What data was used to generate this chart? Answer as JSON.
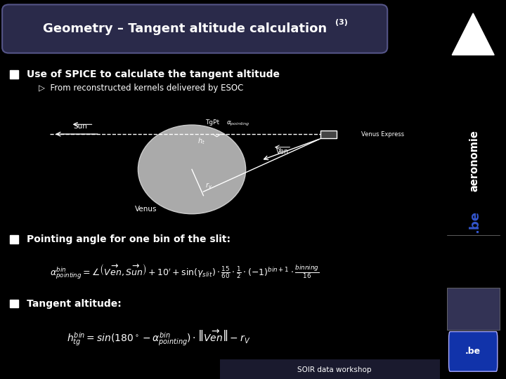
{
  "background_color": "#000000",
  "title_text": "Geometry – Tangent altitude calculation",
  "title_superscript": "(3)",
  "title_bg_color": "#2a2a4a",
  "title_edge_color": "#555588",
  "title_text_color": "#ffffff",
  "bullet1_text": "Use of SPICE to calculate the tangent altitude",
  "bullet1_sub": "▷  From reconstructed kernels delivered by ESOC",
  "bullet2_text": "Pointing angle for one bin of the slit:",
  "bullet3_text": "Tangent altitude:",
  "sidebar_color": "#1a1a2e",
  "text_color": "#ffffff",
  "footer_text": "SOIR data workshop",
  "footer_bg": "#1a1a2e",
  "venus_color": "#aaaaaa",
  "venus_edge": "#cccccc"
}
